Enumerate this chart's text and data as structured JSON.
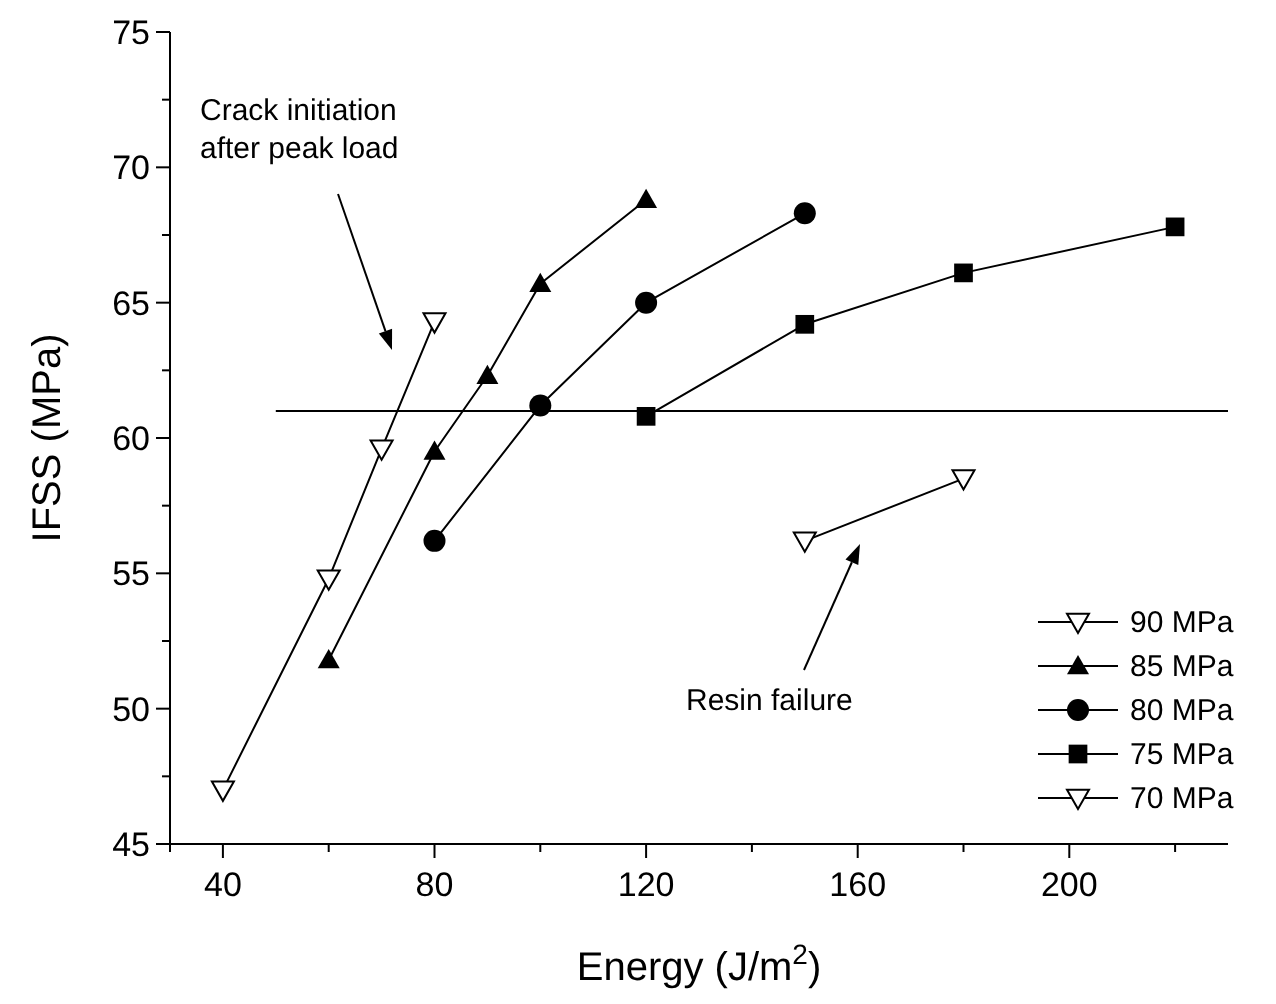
{
  "chart_data": {
    "type": "line",
    "xlabel": "Energy (J/m$^{2}$)",
    "ylabel": "IFSS (MPa)",
    "xlim": [
      30,
      230
    ],
    "xticks": [
      {
        "value": 30,
        "label": null
      },
      40,
      {
        "value": 60,
        "label": null
      },
      80,
      {
        "value": 100,
        "label": null
      },
      120,
      {
        "value": 140,
        "label": null
      },
      160,
      {
        "value": 180,
        "label": null
      },
      200,
      {
        "value": 220,
        "label": null
      }
    ],
    "ylim": [
      45,
      75
    ],
    "yticks": [
      45,
      {
        "value": 47.5,
        "label": null
      },
      50,
      {
        "value": 52.5,
        "label": null
      },
      55,
      {
        "value": 57.5,
        "label": null
      },
      60,
      {
        "value": 62.5,
        "label": null
      },
      65,
      {
        "value": 67.5,
        "label": null
      },
      70,
      {
        "value": 72.5,
        "label": null
      },
      75
    ],
    "grid": false,
    "legend": "bottom right",
    "line_style": "solid",
    "series": [
      {
        "name": "90 MPa",
        "color": "#000000",
        "marker": "triangle-down-open",
        "x": [
          40,
          60,
          70,
          80
        ],
        "values": [
          47,
          54.8,
          59.6,
          64.3
        ]
      },
      {
        "name": "85 MPa",
        "color": "#000000",
        "marker": "triangle",
        "x": [
          60,
          80,
          90,
          100,
          120
        ],
        "values": [
          51.8,
          59.5,
          62.3,
          65.7,
          68.8
        ]
      },
      {
        "name": "80 MPa",
        "color": "#000000",
        "marker": "circle",
        "x": [
          80,
          100,
          120,
          150
        ],
        "values": [
          56.2,
          61.2,
          65,
          68.3
        ]
      },
      {
        "name": "75 MPa",
        "color": "#000000",
        "marker": "square",
        "x": [
          120,
          150,
          180,
          220
        ],
        "values": [
          60.8,
          64.2,
          66.1,
          67.8
        ]
      },
      {
        "name": "70 MPa",
        "color": "#000000",
        "marker": "triangle-down-open",
        "x": [
          150,
          180
        ],
        "values": [
          56.2,
          58.5
        ]
      },
      {
        "color": "#000000",
        "marker": "none",
        "x": [
          50,
          230
        ],
        "values": [
          61,
          61
        ]
      }
    ],
    "annotations": [
      "Crack initiation\nafter peak load",
      "Resin  failure"
    ]
  }
}
